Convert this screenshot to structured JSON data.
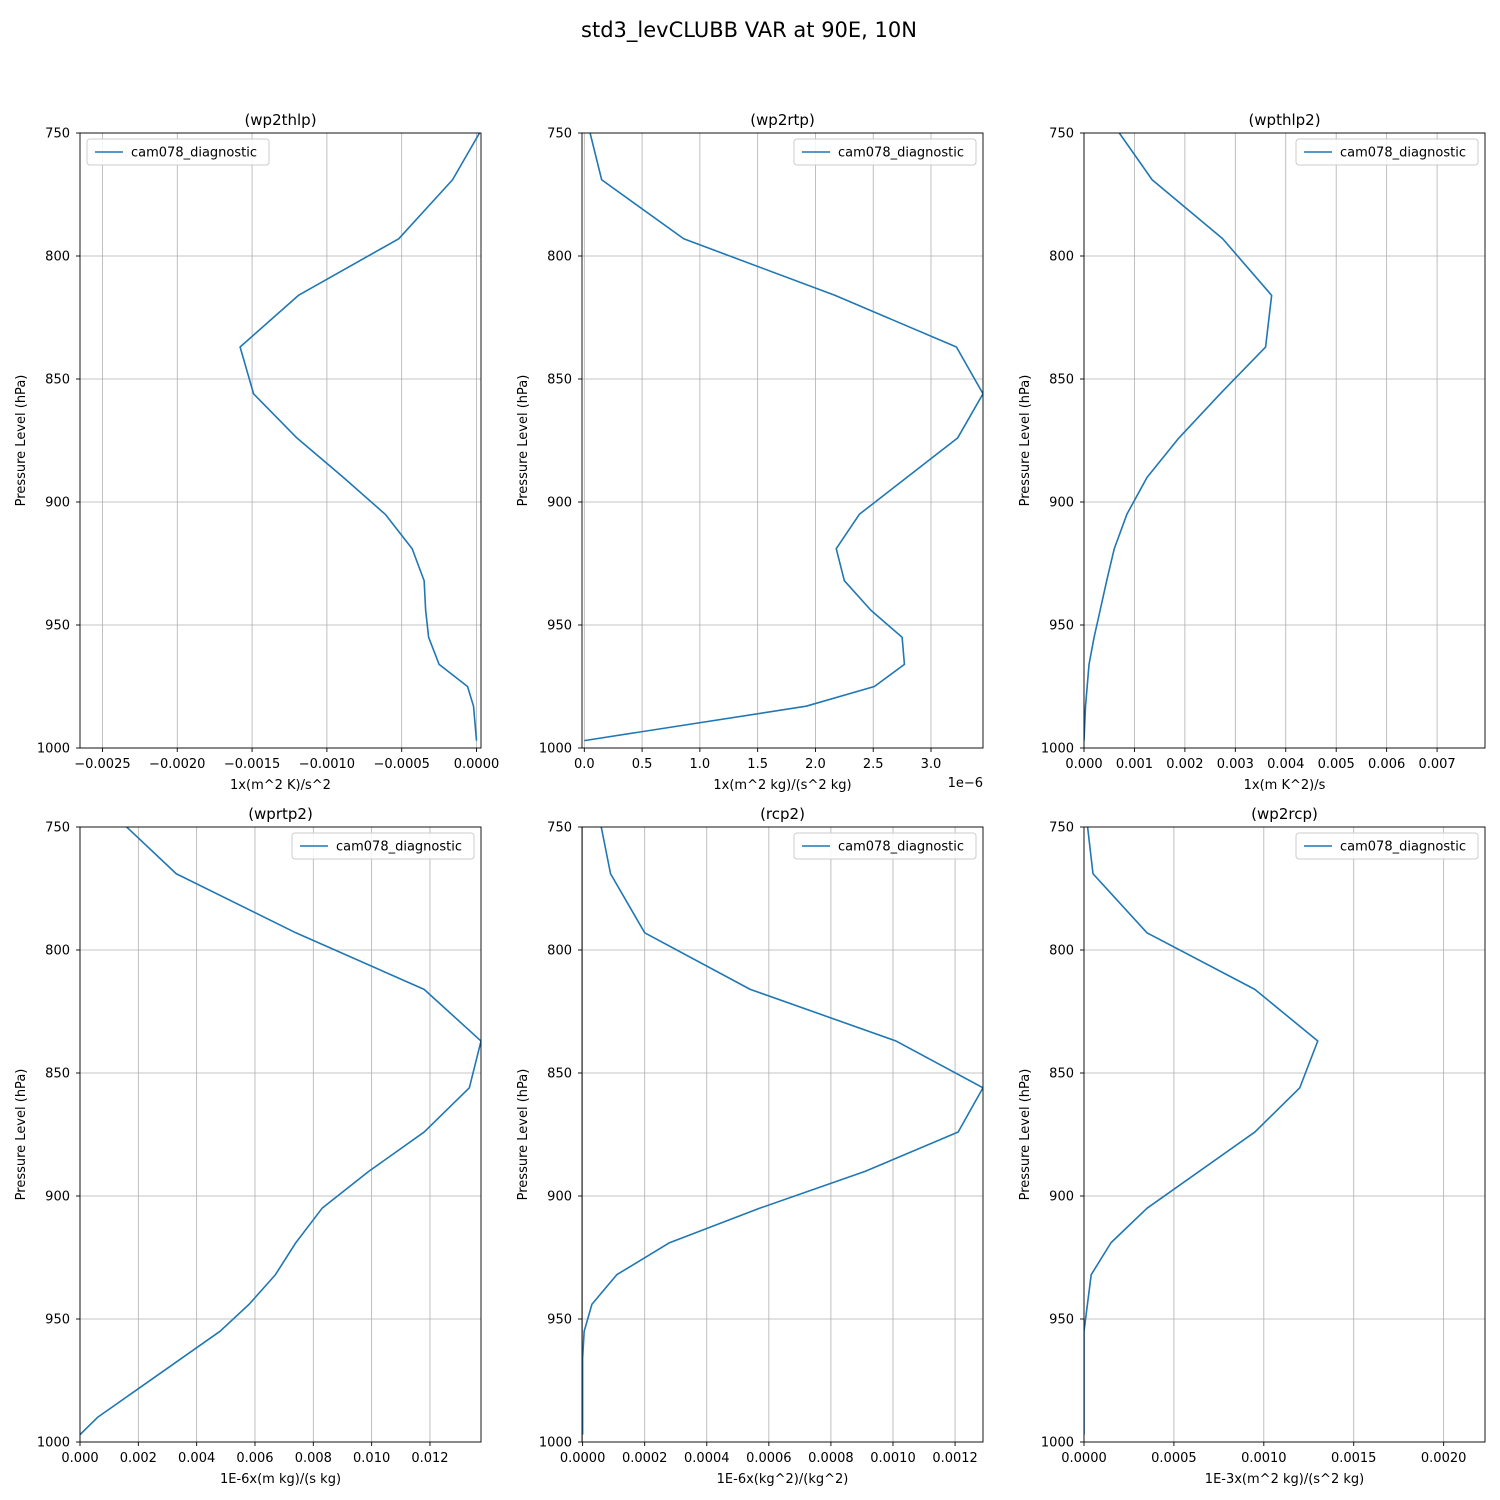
{
  "figure_title": "std3_levCLUBB VAR at 90E, 10N",
  "chart_data": [
    {
      "type": "line",
      "title": "(wp2thlp)",
      "xlabel": "1x(m^2 K)/s^2",
      "ylabel": "Pressure Level (hPa)",
      "x_offset_text": "",
      "xlim": [
        -0.00265,
        3e-05
      ],
      "ylim": [
        1000,
        750
      ],
      "y_inverted": true,
      "grid": true,
      "legend_location": "upper left",
      "xticks": [
        -0.0025,
        -0.002,
        -0.0015,
        -0.001,
        -0.0005,
        0.0
      ],
      "xtick_labels": [
        "−0.0025",
        "−0.0020",
        "−0.0015",
        "−0.0010",
        "−0.0005",
        "0.0000"
      ],
      "yticks": [
        750,
        800,
        850,
        900,
        950,
        1000
      ],
      "ytick_labels": [
        "750",
        "800",
        "850",
        "900",
        "950",
        "1000"
      ],
      "series": [
        {
          "name": "cam078_diagnostic",
          "color": "#1f77b4",
          "x": [
            2e-05,
            -0.00016,
            -0.00052,
            -0.00119,
            -0.00158,
            -0.00149,
            -0.0012,
            -0.00089,
            -0.00061,
            -0.00043,
            -0.00035,
            -0.00034,
            -0.00032,
            -0.00025,
            -6e-05,
            -2e-05,
            0.0
          ],
          "y": [
            750,
            769,
            793,
            816,
            837,
            856,
            874,
            890,
            905,
            919,
            932,
            944,
            955,
            966,
            975,
            983,
            997
          ]
        }
      ]
    },
    {
      "type": "line",
      "title": "(wp2rtp)",
      "xlabel": "1x(m^2 kg)/(s^2 kg)",
      "ylabel": "Pressure Level (hPa)",
      "x_offset_text": "1e−6",
      "xlim": [
        -2e-08,
        3.45e-06
      ],
      "ylim": [
        1000,
        750
      ],
      "y_inverted": true,
      "grid": true,
      "legend_location": "upper right",
      "xticks": [
        0.0,
        5e-07,
        1e-06,
        1.5e-06,
        2e-06,
        2.5e-06,
        3e-06
      ],
      "xtick_labels": [
        "0.0",
        "0.5",
        "1.0",
        "1.5",
        "2.0",
        "2.5",
        "3.0"
      ],
      "yticks": [
        750,
        800,
        850,
        900,
        950,
        1000
      ],
      "ytick_labels": [
        "750",
        "800",
        "850",
        "900",
        "950",
        "1000"
      ],
      "series": [
        {
          "name": "cam078_diagnostic",
          "color": "#1f77b4",
          "x": [
            5e-08,
            1.5e-07,
            8.6e-07,
            2.17e-06,
            3.22e-06,
            3.45e-06,
            3.23e-06,
            2.38e-06,
            2.18e-06,
            2.25e-06,
            2.48e-06,
            2.75e-06,
            2.77e-06,
            2.51e-06,
            1.92e-06,
            0.0
          ],
          "y": [
            750,
            769,
            793,
            816,
            837,
            856,
            874,
            905,
            919,
            932,
            944,
            955,
            966,
            975,
            983,
            997
          ]
        }
      ]
    },
    {
      "type": "line",
      "title": "(wpthlp2)",
      "xlabel": "1x(m K^2)/s",
      "ylabel": "Pressure Level (hPa)",
      "x_offset_text": "",
      "xlim": [
        0.0,
        0.00795
      ],
      "ylim": [
        1000,
        750
      ],
      "y_inverted": true,
      "grid": true,
      "legend_location": "upper right",
      "xticks": [
        0.0,
        0.001,
        0.002,
        0.003,
        0.004,
        0.005,
        0.006,
        0.007
      ],
      "xtick_labels": [
        "0.000",
        "0.001",
        "0.002",
        "0.003",
        "0.004",
        "0.005",
        "0.006",
        "0.007"
      ],
      "yticks": [
        750,
        800,
        850,
        900,
        950,
        1000
      ],
      "ytick_labels": [
        "750",
        "800",
        "850",
        "900",
        "950",
        "1000"
      ],
      "series": [
        {
          "name": "cam078_diagnostic",
          "color": "#1f77b4",
          "x": [
            0.0007,
            0.00135,
            0.00275,
            0.00372,
            0.0036,
            0.0027,
            0.00188,
            0.00125,
            0.00085,
            0.0006,
            0.00045,
            0.00032,
            0.0002,
            0.0001,
            3e-05,
            0.0
          ],
          "y": [
            750,
            769,
            793,
            816,
            837,
            856,
            874,
            890,
            905,
            919,
            932,
            944,
            955,
            966,
            983,
            997
          ]
        }
      ]
    },
    {
      "type": "line",
      "title": "(wprtp2)",
      "xlabel": "1E-6x(m kg)/(s kg)",
      "ylabel": "Pressure Level (hPa)",
      "x_offset_text": "",
      "xlim": [
        0.0,
        0.01375
      ],
      "ylim": [
        1000,
        750
      ],
      "y_inverted": true,
      "grid": true,
      "legend_location": "upper right",
      "xticks": [
        0.0,
        0.002,
        0.004,
        0.006,
        0.008,
        0.01,
        0.012
      ],
      "xtick_labels": [
        "0.000",
        "0.002",
        "0.004",
        "0.006",
        "0.008",
        "0.010",
        "0.012"
      ],
      "yticks": [
        750,
        800,
        850,
        900,
        950,
        1000
      ],
      "ytick_labels": [
        "750",
        "800",
        "850",
        "900",
        "950",
        "1000"
      ],
      "series": [
        {
          "name": "cam078_diagnostic",
          "color": "#1f77b4",
          "x": [
            0.0016,
            0.0033,
            0.0074,
            0.0118,
            0.01375,
            0.01335,
            0.0118,
            0.0099,
            0.0083,
            0.0074,
            0.0067,
            0.0058,
            0.0048,
            0.0018,
            0.0006,
            0.0
          ],
          "y": [
            750,
            769,
            793,
            816,
            837,
            856,
            874,
            890,
            905,
            919,
            932,
            944,
            955,
            980,
            990,
            997
          ]
        }
      ]
    },
    {
      "type": "line",
      "title": "(rcp2)",
      "xlabel": "1E-6x(kg^2)/(kg^2)",
      "ylabel": "Pressure Level (hPa)",
      "x_offset_text": "",
      "xlim": [
        -2e-06,
        0.00129
      ],
      "ylim": [
        1000,
        750
      ],
      "y_inverted": true,
      "grid": true,
      "legend_location": "upper right",
      "xticks": [
        0.0,
        0.0002,
        0.0004,
        0.0006,
        0.0008,
        0.001,
        0.0012
      ],
      "xtick_labels": [
        "0.0000",
        "0.0002",
        "0.0004",
        "0.0006",
        "0.0008",
        "0.0010",
        "0.0012"
      ],
      "yticks": [
        750,
        800,
        850,
        900,
        950,
        1000
      ],
      "ytick_labels": [
        "750",
        "800",
        "850",
        "900",
        "950",
        "1000"
      ],
      "series": [
        {
          "name": "cam078_diagnostic",
          "color": "#1f77b4",
          "x": [
            6e-05,
            9e-05,
            0.0002,
            0.00054,
            0.00101,
            0.00129,
            0.00121,
            0.00091,
            0.00057,
            0.00028,
            0.00011,
            3e-05,
            5e-06,
            0.0,
            0.0
          ],
          "y": [
            750,
            769,
            793,
            816,
            837,
            856,
            874,
            890,
            905,
            919,
            932,
            944,
            955,
            966,
            997
          ]
        }
      ]
    },
    {
      "type": "line",
      "title": "(wp2rcp)",
      "xlabel": "1E-3x(m^2 kg)/(s^2 kg)",
      "ylabel": "Pressure Level (hPa)",
      "x_offset_text": "",
      "xlim": [
        0.0,
        0.00223
      ],
      "ylim": [
        1000,
        750
      ],
      "y_inverted": true,
      "grid": true,
      "legend_location": "upper right",
      "xticks": [
        0.0,
        0.0005,
        0.001,
        0.0015,
        0.002
      ],
      "xtick_labels": [
        "0.0000",
        "0.0005",
        "0.0010",
        "0.0015",
        "0.0020"
      ],
      "yticks": [
        750,
        800,
        850,
        900,
        950,
        1000
      ],
      "ytick_labels": [
        "750",
        "800",
        "850",
        "900",
        "950",
        "1000"
      ],
      "series": [
        {
          "name": "cam078_diagnostic",
          "color": "#1f77b4",
          "x": [
            2e-05,
            5e-05,
            0.00035,
            0.00095,
            0.0013,
            0.0012,
            0.00095,
            0.00035,
            0.00015,
            4e-05,
            0.0,
            0.0
          ],
          "y": [
            750,
            769,
            793,
            816,
            837,
            856,
            874,
            905,
            919,
            932,
            955,
            997
          ]
        }
      ]
    }
  ]
}
